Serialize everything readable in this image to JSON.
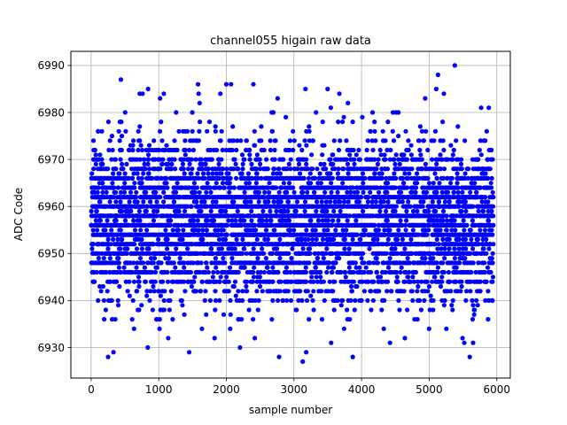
{
  "chart_data": {
    "type": "scatter",
    "title": "channel055 higain raw data",
    "xlabel": "sample number",
    "ylabel": "ADC Code",
    "xlim": [
      -300,
      6200
    ],
    "ylim": [
      6923.5,
      6993
    ],
    "xticks": [
      0,
      1000,
      2000,
      3000,
      4000,
      5000,
      6000
    ],
    "yticks": [
      6930,
      6940,
      6950,
      6960,
      6970,
      6980,
      6990
    ],
    "grid": true,
    "marker_color": "#0000ff",
    "series": [
      {
        "n_points": 6000,
        "x_range": [
          0,
          5950
        ],
        "y_median": 6957,
        "y_core_range": [
          6945,
          6970
        ],
        "y_noise_sd": 8,
        "quantization_step": 2,
        "outliers": [
          {
            "x": 250,
            "y": 6928
          },
          {
            "x": 330,
            "y": 6929
          },
          {
            "x": 440,
            "y": 6987
          },
          {
            "x": 760,
            "y": 6984
          },
          {
            "x": 1020,
            "y": 6983
          },
          {
            "x": 1140,
            "y": 6932
          },
          {
            "x": 1450,
            "y": 6929
          },
          {
            "x": 1580,
            "y": 6986
          },
          {
            "x": 1590,
            "y": 6984
          },
          {
            "x": 2000,
            "y": 6986
          },
          {
            "x": 2070,
            "y": 6986
          },
          {
            "x": 2400,
            "y": 6986
          },
          {
            "x": 2420,
            "y": 6932
          },
          {
            "x": 2780,
            "y": 6928
          },
          {
            "x": 3130,
            "y": 6927
          },
          {
            "x": 3180,
            "y": 6929
          },
          {
            "x": 3170,
            "y": 6985
          },
          {
            "x": 3550,
            "y": 6931
          },
          {
            "x": 3870,
            "y": 6928
          },
          {
            "x": 4420,
            "y": 6931
          },
          {
            "x": 4640,
            "y": 6932
          },
          {
            "x": 4940,
            "y": 6983
          },
          {
            "x": 5130,
            "y": 6988
          },
          {
            "x": 5380,
            "y": 6990
          },
          {
            "x": 5520,
            "y": 6931
          },
          {
            "x": 5600,
            "y": 6928
          },
          {
            "x": 5650,
            "y": 6931
          }
        ]
      }
    ]
  }
}
